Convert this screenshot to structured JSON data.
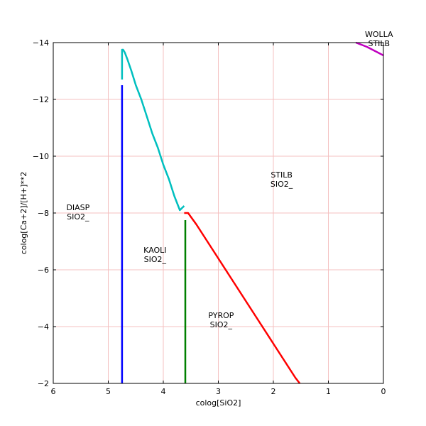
{
  "chart_data": {
    "type": "line",
    "title": "",
    "xlabel": "colog[SiO2]",
    "ylabel": "colog[Ca+2]/[H+]**2",
    "xlim": [
      6,
      0
    ],
    "ylim": [
      -2,
      -14
    ],
    "x_inverted": true,
    "y_inverted": true,
    "x_ticks": [
      6,
      5,
      4,
      3,
      2,
      1,
      0
    ],
    "x_tick_labels": [
      "6",
      "5",
      "4",
      "3",
      "2",
      "1",
      "0"
    ],
    "y_ticks": [
      -2,
      -4,
      -6,
      -8,
      -10,
      -12,
      -14
    ],
    "y_tick_labels": [
      "−2",
      "−4",
      "−6",
      "−8",
      "−10",
      "−12",
      "−14"
    ],
    "grid": true,
    "grid_color": "#f4c0c0",
    "series": [
      {
        "color": "#0000ff",
        "x": [
          4.75,
          4.75
        ],
        "y": [
          -2,
          -12.5
        ]
      },
      {
        "color": "#00bfbf",
        "x": [
          4.75,
          4.75,
          4.73,
          4.7,
          4.65,
          4.58,
          4.5,
          4.4,
          4.3,
          4.2,
          4.1,
          4.0,
          3.9,
          3.8,
          3.7,
          3.62
        ],
        "y": [
          -12.7,
          -13.75,
          -13.75,
          -13.65,
          -13.4,
          -13.0,
          -12.5,
          -12.0,
          -11.4,
          -10.8,
          -10.3,
          -9.7,
          -9.2,
          -8.6,
          -8.1,
          -8.25
        ]
      },
      {
        "color": "#ff0000",
        "x": [
          3.62,
          3.55,
          3.4,
          3.2,
          3.0,
          2.8,
          2.6,
          2.4,
          2.2,
          2.0,
          1.8,
          1.6,
          1.52
        ],
        "y": [
          -8.0,
          -8.0,
          -7.6,
          -7.0,
          -6.4,
          -5.8,
          -5.2,
          -4.6,
          -4.0,
          -3.4,
          -2.8,
          -2.2,
          -2.0
        ]
      },
      {
        "color": "#008000",
        "x": [
          3.6,
          3.6
        ],
        "y": [
          -2,
          -7.75
        ]
      },
      {
        "color": "#bf00bf",
        "x": [
          0.5,
          0.3,
          0.1,
          0.0
        ],
        "y": [
          -14.0,
          -13.85,
          -13.65,
          -13.55
        ]
      }
    ],
    "annotations": [
      {
        "lines": [
          "DIASP",
          "SIO2_"
        ],
        "x": 5.55,
        "y": -8.1
      },
      {
        "lines": [
          "KAOLI",
          "SIO2_"
        ],
        "x": 4.15,
        "y": -6.6
      },
      {
        "lines": [
          "STILB",
          "SIO2_"
        ],
        "x": 1.85,
        "y": -9.25
      },
      {
        "lines": [
          "PYROP",
          "SIO2_"
        ],
        "x": 2.95,
        "y": -4.3
      },
      {
        "lines": [
          "WOLLA",
          "STILB"
        ],
        "x": 0.08,
        "y": -14.2
      }
    ]
  }
}
